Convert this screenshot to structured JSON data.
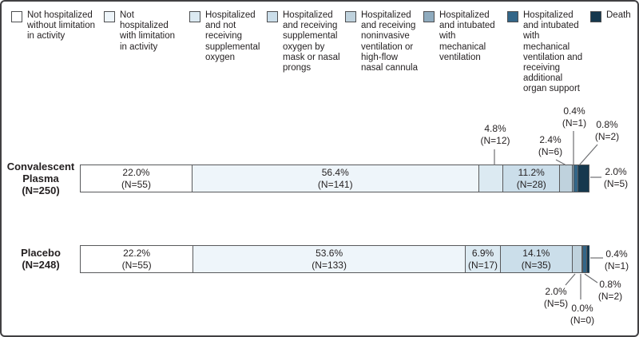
{
  "legend": {
    "items": [
      {
        "label": "Not hospitalized without limitation in activity",
        "color": "#ffffff"
      },
      {
        "label": "Not hospitalized with limitation in activity",
        "color": "#eef5fa"
      },
      {
        "label": "Hospitalized and not receiving supplemental oxygen",
        "color": "#dceaf2"
      },
      {
        "label": "Hospitalized and receiving supplemental oxygen by mask or nasal prongs",
        "color": "#cbdeea"
      },
      {
        "label": "Hospitalized and receiving noninvasive ventilation or high-flow nasal cannula",
        "color": "#bfd2dd"
      },
      {
        "label": "Hospitalized and intubated with mechanical ventilation",
        "color": "#8fabbe"
      },
      {
        "label": "Hospitalized and intubated with mechanical ventilation and receiving additional organ support",
        "color": "#336688"
      },
      {
        "label": "Death",
        "color": "#16384e"
      }
    ]
  },
  "rows": [
    {
      "label_lines": [
        "Convalescent",
        "Plasma",
        "(N=250)"
      ],
      "segments": [
        {
          "pct": 22.0,
          "n": 55,
          "pct_label": "22.0%",
          "n_label": "(N=55)",
          "placement": "inside"
        },
        {
          "pct": 56.4,
          "n": 141,
          "pct_label": "56.4%",
          "n_label": "(N=141)",
          "placement": "inside"
        },
        {
          "pct": 4.8,
          "n": 12,
          "pct_label": "4.8%",
          "n_label": "(N=12)",
          "placement": "callout"
        },
        {
          "pct": 11.2,
          "n": 28,
          "pct_label": "11.2%",
          "n_label": "(N=28)",
          "placement": "inside"
        },
        {
          "pct": 2.4,
          "n": 6,
          "pct_label": "2.4%",
          "n_label": "(N=6)",
          "placement": "callout"
        },
        {
          "pct": 0.4,
          "n": 1,
          "pct_label": "0.4%",
          "n_label": "(N=1)",
          "placement": "callout"
        },
        {
          "pct": 0.8,
          "n": 2,
          "pct_label": "0.8%",
          "n_label": "(N=2)",
          "placement": "callout"
        },
        {
          "pct": 2.0,
          "n": 5,
          "pct_label": "2.0%",
          "n_label": "(N=5)",
          "placement": "callout"
        }
      ]
    },
    {
      "label_lines": [
        "Placebo",
        "(N=248)"
      ],
      "segments": [
        {
          "pct": 22.2,
          "n": 55,
          "pct_label": "22.2%",
          "n_label": "(N=55)",
          "placement": "inside"
        },
        {
          "pct": 53.6,
          "n": 133,
          "pct_label": "53.6%",
          "n_label": "(N=133)",
          "placement": "inside"
        },
        {
          "pct": 6.9,
          "n": 17,
          "pct_label": "6.9%",
          "n_label": "(N=17)",
          "placement": "inside"
        },
        {
          "pct": 14.1,
          "n": 35,
          "pct_label": "14.1%",
          "n_label": "(N=35)",
          "placement": "inside"
        },
        {
          "pct": 2.0,
          "n": 5,
          "pct_label": "2.0%",
          "n_label": "(N=5)",
          "placement": "callout"
        },
        {
          "pct": 0.0,
          "n": 0,
          "pct_label": "0.0%",
          "n_label": "(N=0)",
          "placement": "callout"
        },
        {
          "pct": 0.8,
          "n": 2,
          "pct_label": "0.8%",
          "n_label": "(N=2)",
          "placement": "callout"
        },
        {
          "pct": 0.4,
          "n": 1,
          "pct_label": "0.4%",
          "n_label": "(N=1)",
          "placement": "callout"
        }
      ]
    }
  ],
  "chart_data": {
    "type": "bar",
    "subtype": "horizontal-100pct-stacked",
    "title": "",
    "xlabel": "",
    "ylabel": "",
    "legend_position": "top",
    "grid": false,
    "categories": [
      "Not hospitalized without limitation in activity",
      "Not hospitalized with limitation in activity",
      "Hospitalized and not receiving supplemental oxygen",
      "Hospitalized and receiving supplemental oxygen by mask or nasal prongs",
      "Hospitalized and receiving noninvasive ventilation or high-flow nasal cannula",
      "Hospitalized and intubated with mechanical ventilation",
      "Hospitalized and intubated with mechanical ventilation and receiving additional organ support",
      "Death"
    ],
    "series": [
      {
        "name": "Convalescent Plasma (N=250)",
        "percentages": [
          22.0,
          56.4,
          4.8,
          11.2,
          2.4,
          0.4,
          0.8,
          2.0
        ],
        "counts": [
          55,
          141,
          12,
          28,
          6,
          1,
          2,
          5
        ]
      },
      {
        "name": "Placebo (N=248)",
        "percentages": [
          22.2,
          53.6,
          6.9,
          14.1,
          2.0,
          0.0,
          0.8,
          0.4
        ],
        "counts": [
          55,
          133,
          17,
          35,
          5,
          0,
          2,
          1
        ]
      }
    ],
    "colors": [
      "#ffffff",
      "#eef5fa",
      "#dceaf2",
      "#cbdeea",
      "#bfd2dd",
      "#8fabbe",
      "#336688",
      "#16384e"
    ],
    "xlim": [
      0,
      100
    ]
  }
}
